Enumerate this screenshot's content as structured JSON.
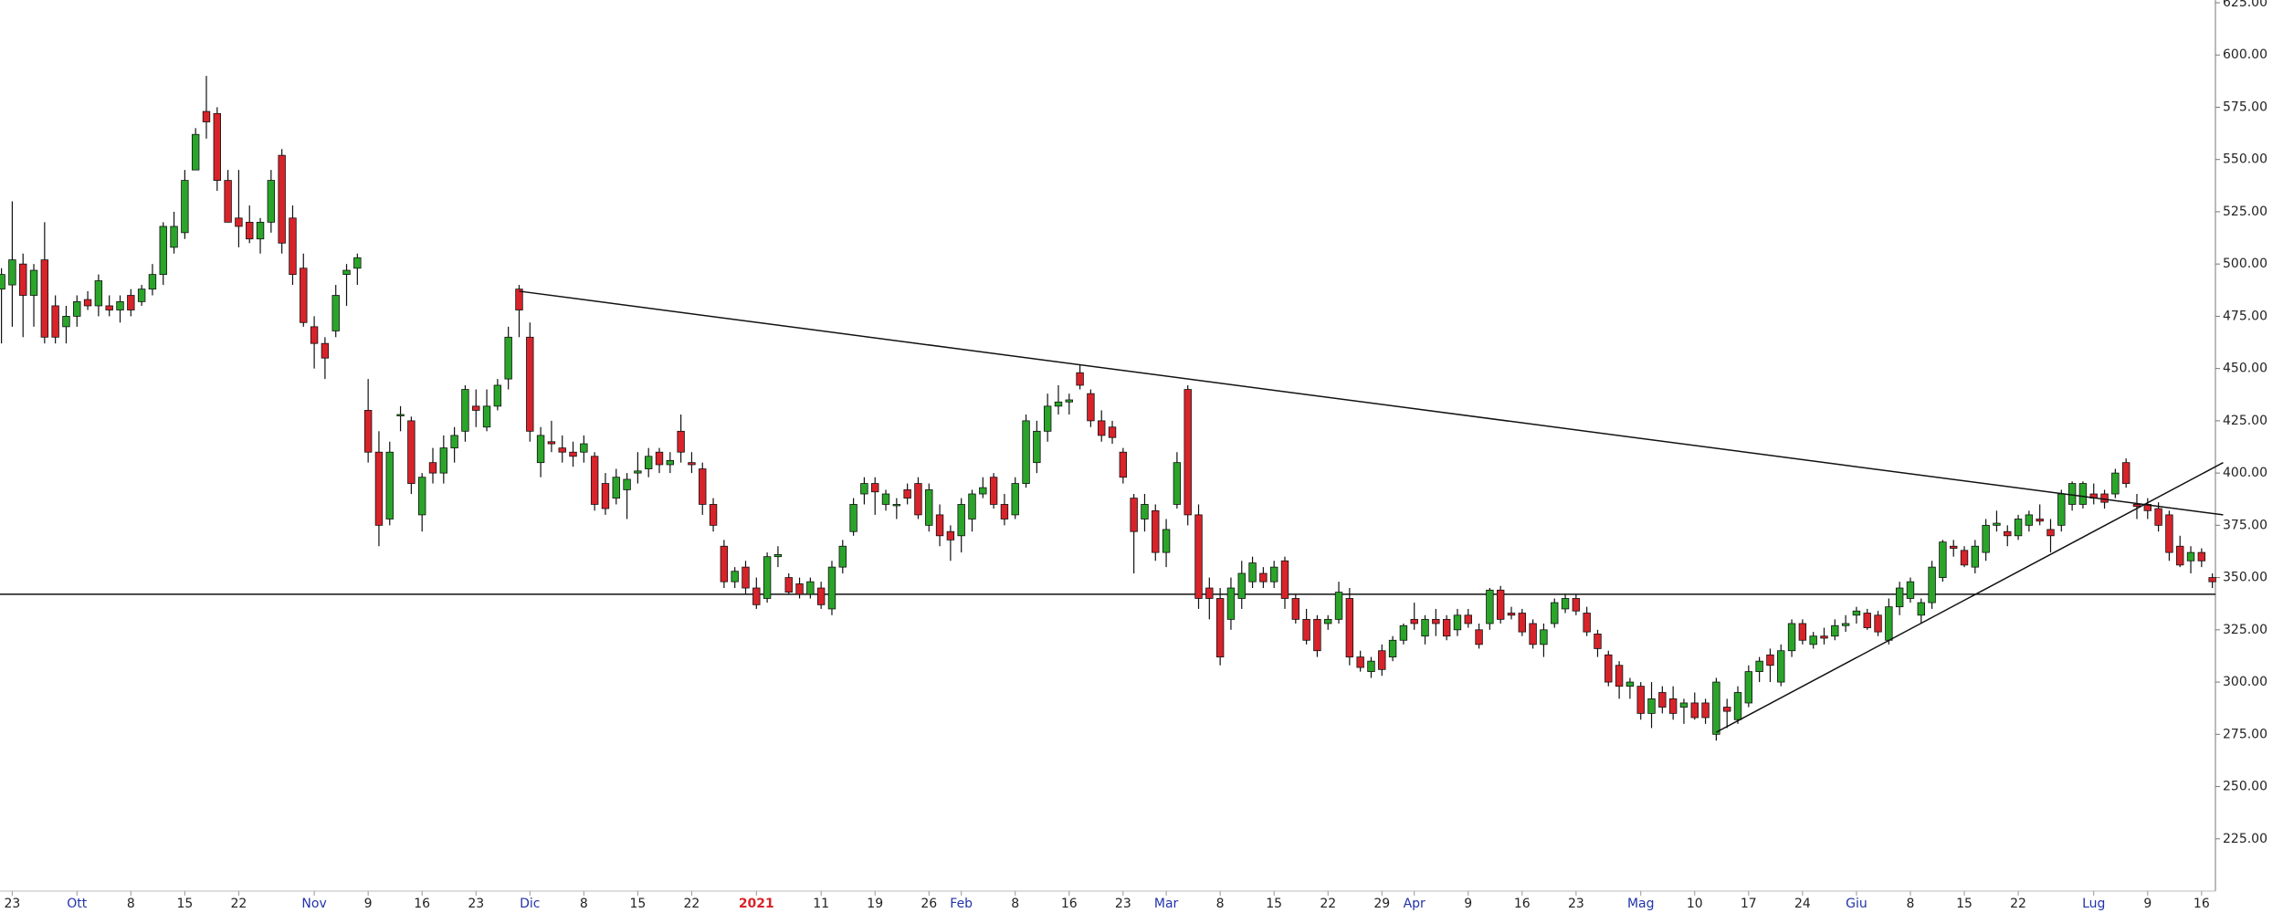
{
  "chart_data": {
    "type": "candlestick",
    "up_color": "#2aa52a",
    "down_color": "#d8232a",
    "ylim": [
      200,
      625
    ],
    "yticks": [
      {
        "value": 225,
        "label": "225.00"
      },
      {
        "value": 250,
        "label": "250.00"
      },
      {
        "value": 275,
        "label": "275.00"
      },
      {
        "value": 300,
        "label": "300.00"
      },
      {
        "value": 325,
        "label": "325.00"
      },
      {
        "value": 350,
        "label": "350.00"
      },
      {
        "value": 375,
        "label": "375.00"
      },
      {
        "value": 400,
        "label": "400.00"
      },
      {
        "value": 425,
        "label": "425.00"
      },
      {
        "value": 450,
        "label": "450.00"
      },
      {
        "value": 475,
        "label": "475.00"
      },
      {
        "value": 500,
        "label": "500.00"
      },
      {
        "value": 525,
        "label": "525.00"
      },
      {
        "value": 550,
        "label": "550.00"
      },
      {
        "value": 575,
        "label": "575.00"
      },
      {
        "value": 600,
        "label": "600.00"
      },
      {
        "value": 625,
        "label": "625.00"
      }
    ],
    "categories": [
      null,
      "23",
      null,
      null,
      null,
      null,
      null,
      "Ott",
      null,
      null,
      null,
      null,
      "8",
      null,
      null,
      null,
      null,
      "15",
      null,
      null,
      null,
      null,
      "22",
      null,
      null,
      null,
      null,
      null,
      null,
      "Nov",
      null,
      null,
      null,
      null,
      "9",
      null,
      null,
      null,
      null,
      "16",
      null,
      null,
      null,
      null,
      "23",
      null,
      null,
      null,
      null,
      "Dic",
      null,
      null,
      null,
      null,
      "8",
      null,
      null,
      null,
      null,
      "15",
      null,
      null,
      null,
      null,
      "22",
      null,
      null,
      null,
      null,
      null,
      "2021",
      null,
      null,
      null,
      null,
      null,
      "11",
      null,
      null,
      null,
      null,
      "19",
      null,
      null,
      null,
      null,
      "26",
      null,
      null,
      "Feb",
      null,
      null,
      null,
      null,
      "8",
      null,
      null,
      null,
      null,
      "16",
      null,
      null,
      null,
      null,
      "23",
      null,
      null,
      null,
      "Mar",
      null,
      null,
      null,
      null,
      "8",
      null,
      null,
      null,
      null,
      "15",
      null,
      null,
      null,
      null,
      "22",
      null,
      null,
      null,
      null,
      "29",
      null,
      null,
      "Apr",
      null,
      null,
      null,
      null,
      "9",
      null,
      null,
      null,
      null,
      "16",
      null,
      null,
      null,
      null,
      "23",
      null,
      null,
      null,
      null,
      null,
      "Mag",
      null,
      null,
      null,
      null,
      "10",
      null,
      null,
      null,
      null,
      "17",
      null,
      null,
      null,
      null,
      "24",
      null,
      null,
      null,
      null,
      "Giu",
      null,
      null,
      null,
      null,
      "8",
      null,
      null,
      null,
      null,
      "15",
      null,
      null,
      null,
      null,
      "22",
      null,
      null,
      null,
      null,
      null,
      null,
      "Lug",
      null,
      null,
      null,
      null,
      "9",
      null,
      null,
      null,
      null,
      "16",
      null
    ],
    "ohlc": [
      [
        488,
        498,
        462,
        495
      ],
      [
        490,
        530,
        470,
        502
      ],
      [
        500,
        505,
        465,
        485
      ],
      [
        485,
        500,
        470,
        497
      ],
      [
        502,
        520,
        462,
        465
      ],
      [
        480,
        485,
        462,
        465
      ],
      [
        470,
        480,
        462,
        475
      ],
      [
        475,
        485,
        470,
        482
      ],
      [
        483,
        487,
        478,
        480
      ],
      [
        480,
        495,
        475,
        492
      ],
      [
        480,
        485,
        475,
        478
      ],
      [
        478,
        485,
        472,
        482
      ],
      [
        485,
        488,
        475,
        478
      ],
      [
        482,
        490,
        480,
        488
      ],
      [
        488,
        500,
        485,
        495
      ],
      [
        495,
        520,
        490,
        518
      ],
      [
        508,
        525,
        505,
        518
      ],
      [
        515,
        545,
        512,
        540
      ],
      [
        545,
        565,
        545,
        562
      ],
      [
        573,
        590,
        560,
        568
      ],
      [
        572,
        575,
        535,
        540
      ],
      [
        540,
        545,
        520,
        520
      ],
      [
        522,
        545,
        508,
        518
      ],
      [
        520,
        528,
        510,
        512
      ],
      [
        512,
        522,
        505,
        520
      ],
      [
        520,
        545,
        515,
        540
      ],
      [
        552,
        555,
        505,
        510
      ],
      [
        522,
        528,
        490,
        495
      ],
      [
        498,
        505,
        470,
        472
      ],
      [
        470,
        475,
        450,
        462
      ],
      [
        462,
        465,
        445,
        455
      ],
      [
        468,
        490,
        465,
        485
      ],
      [
        495,
        500,
        480,
        497
      ],
      [
        498,
        505,
        490,
        503
      ],
      [
        430,
        445,
        405,
        410
      ],
      [
        410,
        420,
        365,
        375
      ],
      [
        378,
        415,
        375,
        410
      ],
      [
        428,
        432,
        420,
        428
      ],
      [
        425,
        427,
        390,
        395
      ],
      [
        380,
        400,
        372,
        398
      ],
      [
        405,
        412,
        395,
        400
      ],
      [
        400,
        418,
        395,
        412
      ],
      [
        412,
        422,
        405,
        418
      ],
      [
        420,
        442,
        415,
        440
      ],
      [
        432,
        440,
        422,
        430
      ],
      [
        422,
        440,
        420,
        432
      ],
      [
        432,
        445,
        430,
        442
      ],
      [
        445,
        470,
        440,
        465
      ],
      [
        488,
        490,
        465,
        478
      ],
      [
        465,
        472,
        415,
        420
      ],
      [
        405,
        422,
        398,
        418
      ],
      [
        415,
        425,
        410,
        414
      ],
      [
        412,
        418,
        405,
        410
      ],
      [
        410,
        415,
        403,
        408
      ],
      [
        410,
        418,
        405,
        414
      ],
      [
        408,
        410,
        382,
        385
      ],
      [
        395,
        400,
        380,
        383
      ],
      [
        388,
        402,
        385,
        398
      ],
      [
        392,
        400,
        378,
        397
      ],
      [
        400,
        410,
        395,
        401
      ],
      [
        402,
        412,
        398,
        408
      ],
      [
        410,
        412,
        400,
        404
      ],
      [
        404,
        410,
        400,
        406
      ],
      [
        420,
        428,
        405,
        410
      ],
      [
        405,
        410,
        400,
        404
      ],
      [
        402,
        405,
        380,
        385
      ],
      [
        385,
        388,
        372,
        375
      ],
      [
        365,
        368,
        345,
        348
      ],
      [
        348,
        355,
        345,
        353
      ],
      [
        355,
        358,
        342,
        345
      ],
      [
        345,
        350,
        335,
        337
      ],
      [
        340,
        362,
        338,
        360
      ],
      [
        360,
        365,
        355,
        361
      ],
      [
        350,
        352,
        342,
        343
      ],
      [
        347,
        350,
        340,
        342
      ],
      [
        342,
        350,
        340,
        348
      ],
      [
        345,
        348,
        335,
        337
      ],
      [
        335,
        358,
        332,
        355
      ],
      [
        355,
        368,
        352,
        365
      ],
      [
        372,
        388,
        370,
        385
      ],
      [
        390,
        398,
        385,
        395
      ],
      [
        395,
        398,
        380,
        391
      ],
      [
        385,
        392,
        382,
        390
      ],
      [
        385,
        388,
        378,
        385
      ],
      [
        392,
        395,
        385,
        388
      ],
      [
        395,
        398,
        378,
        380
      ],
      [
        375,
        395,
        372,
        392
      ],
      [
        380,
        385,
        365,
        370
      ],
      [
        372,
        375,
        358,
        368
      ],
      [
        370,
        388,
        362,
        385
      ],
      [
        378,
        392,
        372,
        390
      ],
      [
        390,
        398,
        388,
        393
      ],
      [
        398,
        400,
        383,
        385
      ],
      [
        385,
        390,
        375,
        378
      ],
      [
        380,
        398,
        378,
        395
      ],
      [
        395,
        428,
        393,
        425
      ],
      [
        405,
        425,
        400,
        420
      ],
      [
        420,
        438,
        415,
        432
      ],
      [
        432,
        442,
        428,
        434
      ],
      [
        434,
        438,
        428,
        435
      ],
      [
        448,
        452,
        440,
        442
      ],
      [
        438,
        440,
        422,
        425
      ],
      [
        425,
        430,
        415,
        418
      ],
      [
        422,
        425,
        414,
        417
      ],
      [
        410,
        412,
        395,
        398
      ],
      [
        388,
        390,
        352,
        372
      ],
      [
        378,
        390,
        372,
        385
      ],
      [
        382,
        385,
        358,
        362
      ],
      [
        362,
        378,
        355,
        373
      ],
      [
        385,
        410,
        383,
        405
      ],
      [
        440,
        442,
        375,
        380
      ],
      [
        380,
        385,
        335,
        340
      ],
      [
        345,
        350,
        330,
        340
      ],
      [
        340,
        345,
        308,
        312
      ],
      [
        330,
        350,
        325,
        345
      ],
      [
        340,
        358,
        335,
        352
      ],
      [
        348,
        360,
        345,
        357
      ],
      [
        352,
        355,
        345,
        348
      ],
      [
        348,
        358,
        345,
        355
      ],
      [
        358,
        360,
        335,
        340
      ],
      [
        340,
        342,
        328,
        330
      ],
      [
        330,
        335,
        318,
        320
      ],
      [
        330,
        332,
        312,
        315
      ],
      [
        328,
        332,
        325,
        330
      ],
      [
        330,
        348,
        328,
        343
      ],
      [
        340,
        345,
        308,
        312
      ],
      [
        312,
        315,
        305,
        307
      ],
      [
        305,
        312,
        302,
        310
      ],
      [
        315,
        318,
        303,
        306
      ],
      [
        312,
        322,
        310,
        320
      ],
      [
        320,
        328,
        318,
        327
      ],
      [
        330,
        338,
        325,
        328
      ],
      [
        322,
        332,
        318,
        330
      ],
      [
        330,
        335,
        322,
        328
      ],
      [
        330,
        332,
        320,
        322
      ],
      [
        325,
        335,
        322,
        332
      ],
      [
        332,
        335,
        326,
        328
      ],
      [
        325,
        328,
        316,
        318
      ],
      [
        328,
        345,
        325,
        344
      ],
      [
        344,
        346,
        328,
        330
      ],
      [
        333,
        336,
        330,
        332
      ],
      [
        333,
        335,
        322,
        324
      ],
      [
        328,
        330,
        316,
        318
      ],
      [
        318,
        328,
        312,
        325
      ],
      [
        328,
        340,
        326,
        338
      ],
      [
        335,
        342,
        333,
        340
      ],
      [
        340,
        342,
        332,
        334
      ],
      [
        333,
        336,
        322,
        324
      ],
      [
        323,
        325,
        312,
        316
      ],
      [
        313,
        315,
        298,
        300
      ],
      [
        308,
        310,
        292,
        298
      ],
      [
        298,
        302,
        292,
        300
      ],
      [
        298,
        300,
        282,
        285
      ],
      [
        285,
        300,
        278,
        292
      ],
      [
        295,
        298,
        285,
        288
      ],
      [
        292,
        298,
        282,
        285
      ],
      [
        288,
        292,
        280,
        290
      ],
      [
        290,
        295,
        282,
        283
      ],
      [
        290,
        292,
        280,
        283
      ],
      [
        275,
        302,
        272,
        300
      ],
      [
        288,
        292,
        278,
        286
      ],
      [
        282,
        298,
        280,
        295
      ],
      [
        290,
        308,
        288,
        305
      ],
      [
        305,
        312,
        300,
        310
      ],
      [
        313,
        316,
        300,
        308
      ],
      [
        300,
        318,
        298,
        315
      ],
      [
        315,
        330,
        312,
        328
      ],
      [
        328,
        330,
        318,
        320
      ],
      [
        318,
        324,
        316,
        322
      ],
      [
        322,
        326,
        318,
        321
      ],
      [
        322,
        330,
        320,
        327
      ],
      [
        327,
        332,
        324,
        328
      ],
      [
        332,
        336,
        328,
        334
      ],
      [
        333,
        335,
        325,
        326
      ],
      [
        332,
        334,
        322,
        324
      ],
      [
        320,
        340,
        318,
        336
      ],
      [
        336,
        348,
        332,
        345
      ],
      [
        340,
        350,
        338,
        348
      ],
      [
        332,
        340,
        328,
        338
      ],
      [
        338,
        358,
        335,
        355
      ],
      [
        350,
        368,
        348,
        367
      ],
      [
        365,
        368,
        360,
        364
      ],
      [
        363,
        365,
        355,
        356
      ],
      [
        355,
        368,
        352,
        365
      ],
      [
        362,
        378,
        358,
        375
      ],
      [
        375,
        382,
        372,
        376
      ],
      [
        372,
        375,
        365,
        370
      ],
      [
        370,
        380,
        368,
        378
      ],
      [
        375,
        382,
        372,
        380
      ],
      [
        378,
        385,
        375,
        377
      ],
      [
        373,
        378,
        362,
        370
      ],
      [
        375,
        392,
        372,
        390
      ],
      [
        385,
        396,
        382,
        395
      ],
      [
        385,
        396,
        383,
        395
      ],
      [
        390,
        395,
        385,
        388
      ],
      [
        390,
        392,
        383,
        386
      ],
      [
        390,
        402,
        388,
        400
      ],
      [
        405,
        407,
        393,
        395
      ],
      [
        385,
        390,
        378,
        384
      ],
      [
        385,
        388,
        378,
        382
      ],
      [
        383,
        386,
        372,
        375
      ],
      [
        380,
        382,
        358,
        362
      ],
      [
        365,
        370,
        355,
        356
      ],
      [
        358,
        365,
        352,
        362
      ],
      [
        362,
        364,
        355,
        358
      ],
      [
        350,
        352,
        345,
        348
      ]
    ],
    "support_level": 342,
    "trend_lines": [
      {
        "x": [
          48,
          206
        ],
        "y": [
          487,
          380
        ]
      },
      {
        "x": [
          159,
          206
        ],
        "y": [
          276,
          405
        ]
      }
    ]
  }
}
